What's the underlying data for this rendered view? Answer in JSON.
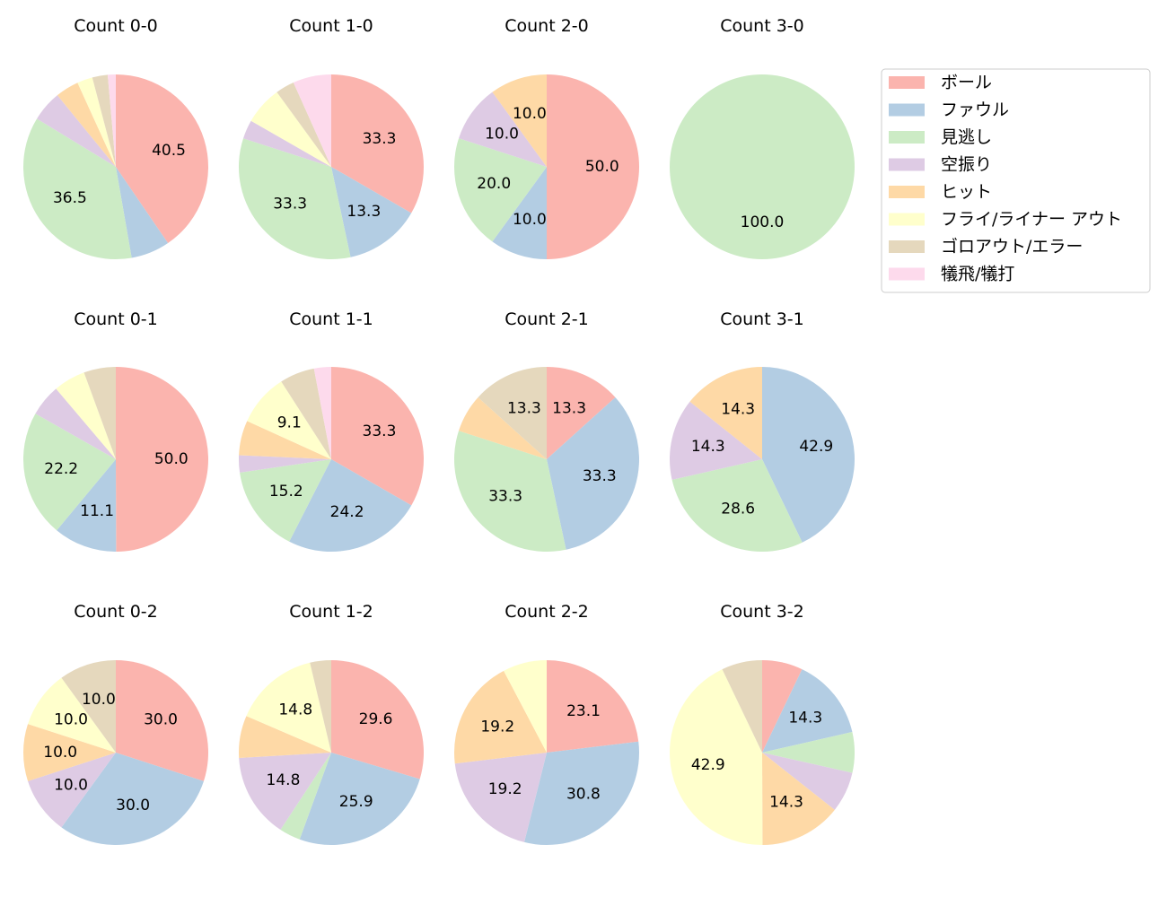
{
  "chart_data": {
    "type": "pie",
    "legend": {
      "placement": "right",
      "entries": [
        "ボール",
        "ファウル",
        "見逃し",
        "空振り",
        "ヒット",
        "フライ/ライナー アウト",
        "ゴロアウト/エラー",
        "犠飛/犠打"
      ]
    },
    "colors": [
      "#fbb4ae",
      "#b3cde3",
      "#ccebc5",
      "#decbe4",
      "#fed9a6",
      "#ffffcc",
      "#e5d8bd",
      "#fddaec"
    ],
    "start_angle": 90,
    "direction": "clockwise",
    "charts": [
      {
        "title": "Count 0-0",
        "values": [
          40.5,
          6.8,
          36.5,
          5.4,
          4.1,
          2.7,
          2.7,
          1.4
        ]
      },
      {
        "title": "Count 1-0",
        "values": [
          33.3,
          13.3,
          33.3,
          3.3,
          0,
          6.7,
          3.3,
          6.7
        ]
      },
      {
        "title": "Count 2-0",
        "values": [
          50.0,
          10.0,
          20.0,
          10.0,
          10.0,
          0,
          0,
          0
        ]
      },
      {
        "title": "Count 3-0",
        "values": [
          0,
          0,
          100.0,
          0,
          0,
          0,
          0,
          0
        ]
      },
      {
        "title": "Count 0-1",
        "values": [
          50.0,
          11.1,
          22.2,
          5.6,
          0,
          5.6,
          5.6,
          0
        ]
      },
      {
        "title": "Count 1-1",
        "values": [
          33.3,
          24.2,
          15.2,
          3.0,
          6.1,
          9.1,
          6.1,
          3.0
        ]
      },
      {
        "title": "Count 2-1",
        "values": [
          13.3,
          33.3,
          33.3,
          0,
          6.7,
          0,
          13.3,
          0
        ]
      },
      {
        "title": "Count 3-1",
        "values": [
          0,
          42.9,
          28.6,
          14.3,
          14.3,
          0,
          0,
          0
        ]
      },
      {
        "title": "Count 0-2",
        "values": [
          30.0,
          30.0,
          0,
          10.0,
          10.0,
          10.0,
          10.0,
          0
        ]
      },
      {
        "title": "Count 1-2",
        "values": [
          29.6,
          25.9,
          3.7,
          14.8,
          7.4,
          14.8,
          3.7,
          0
        ]
      },
      {
        "title": "Count 2-2",
        "values": [
          23.1,
          30.8,
          0,
          19.2,
          19.2,
          7.7,
          0,
          0
        ]
      },
      {
        "title": "Count 3-2",
        "values": [
          7.1,
          14.3,
          7.1,
          7.1,
          14.3,
          42.9,
          7.1,
          0
        ]
      }
    ]
  }
}
